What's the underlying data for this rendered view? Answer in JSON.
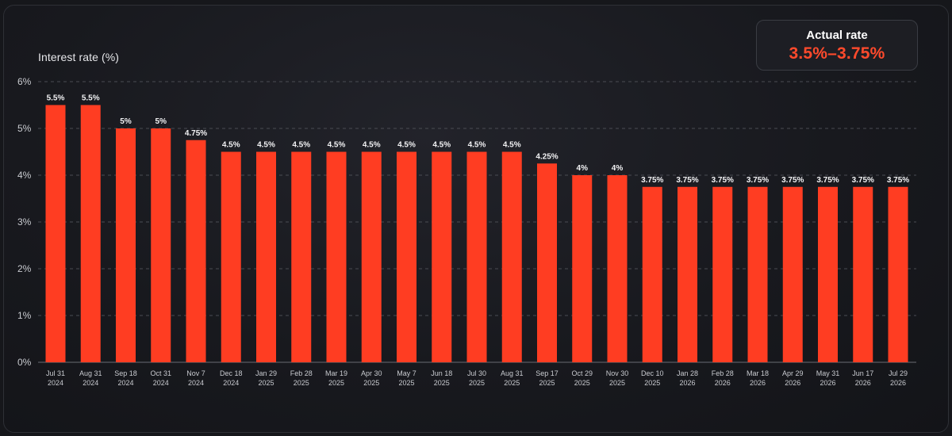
{
  "summary_card": {
    "label": "Actual rate",
    "value": "3.5%–3.75%"
  },
  "colors": {
    "bar": "#ff3d22",
    "accent_text": "#ff4a2c",
    "background": "#18191e",
    "gridline": "#4a4c53"
  },
  "chart_data": {
    "type": "bar",
    "ylabel": "Interest rate (%)",
    "ylim": [
      0,
      6
    ],
    "yticks": [
      0,
      1,
      2,
      3,
      4,
      5,
      6
    ],
    "ytick_labels": [
      "0%",
      "1%",
      "2%",
      "3%",
      "4%",
      "5%",
      "6%"
    ],
    "grid": true,
    "categories": [
      [
        "Jul 31",
        "2024"
      ],
      [
        "Aug 31",
        "2024"
      ],
      [
        "Sep 18",
        "2024"
      ],
      [
        "Oct 31",
        "2024"
      ],
      [
        "Nov 7",
        "2024"
      ],
      [
        "Dec 18",
        "2024"
      ],
      [
        "Jan 29",
        "2025"
      ],
      [
        "Feb 28",
        "2025"
      ],
      [
        "Mar 19",
        "2025"
      ],
      [
        "Apr 30",
        "2025"
      ],
      [
        "May 7",
        "2025"
      ],
      [
        "Jun 18",
        "2025"
      ],
      [
        "Jul 30",
        "2025"
      ],
      [
        "Aug 31",
        "2025"
      ],
      [
        "Sep 17",
        "2025"
      ],
      [
        "Oct 29",
        "2025"
      ],
      [
        "Nov 30",
        "2025"
      ],
      [
        "Dec 10",
        "2025"
      ],
      [
        "Jan 28",
        "2026"
      ],
      [
        "Feb 28",
        "2026"
      ],
      [
        "Mar 18",
        "2026"
      ],
      [
        "Apr 29",
        "2026"
      ],
      [
        "May 31",
        "2026"
      ],
      [
        "Jun 17",
        "2026"
      ],
      [
        "Jul 29",
        "2026"
      ]
    ],
    "values": [
      5.5,
      5.5,
      5,
      5,
      4.75,
      4.5,
      4.5,
      4.5,
      4.5,
      4.5,
      4.5,
      4.5,
      4.5,
      4.5,
      4.25,
      4,
      4,
      3.75,
      3.75,
      3.75,
      3.75,
      3.75,
      3.75,
      3.75,
      3.75
    ],
    "value_labels": [
      "5.5%",
      "5.5%",
      "5%",
      "5%",
      "4.75%",
      "4.5%",
      "4.5%",
      "4.5%",
      "4.5%",
      "4.5%",
      "4.5%",
      "4.5%",
      "4.5%",
      "4.5%",
      "4.25%",
      "4%",
      "4%",
      "3.75%",
      "3.75%",
      "3.75%",
      "3.75%",
      "3.75%",
      "3.75%",
      "3.75%",
      "3.75%"
    ]
  }
}
